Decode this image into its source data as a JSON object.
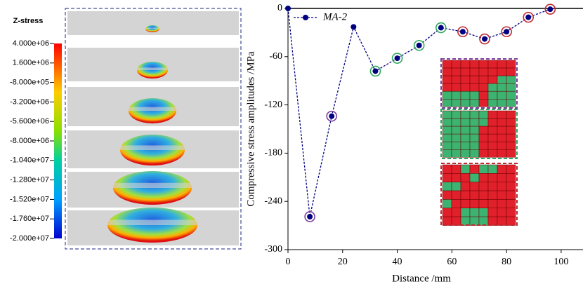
{
  "colorbar": {
    "title": "Z-stress",
    "labels": [
      "4.000e+06",
      "1.600e+06",
      "-8.000e+05",
      "-3.200e+06",
      "-5.600e+06",
      "-8.000e+06",
      "-1.040e+07",
      "-1.280e+07",
      "-1.520e+07",
      "-1.760e+07",
      "-2.000e+07"
    ]
  },
  "chart_data": {
    "type": "line",
    "x_label": "Distance /mm",
    "y_label": "Compressive stress amplitudes /MPa",
    "x": [
      0,
      8,
      16,
      24,
      32,
      40,
      48,
      56,
      64,
      72,
      80,
      88,
      96
    ],
    "series": [
      {
        "name": "MA-2",
        "color": "#000080",
        "values": [
          0,
          -259,
          -134,
          -23,
          -78,
          -62,
          -46,
          -24,
          -29,
          -38,
          -29,
          -11,
          -1
        ],
        "ring_colors": [
          null,
          "#7b3f9e",
          "#7b3f9e",
          null,
          "#2ea85a",
          "#2ea85a",
          "#2ea85a",
          "#2ea85a",
          "#c0282d",
          "#c0282d",
          "#c0282d",
          "#c0282d",
          "#c0282d"
        ]
      }
    ],
    "xlim": [
      0,
      108
    ],
    "ylim": [
      -300,
      0
    ],
    "xticks": [
      0,
      20,
      40,
      60,
      80,
      100
    ],
    "yticks": [
      0,
      -60,
      -120,
      -180,
      -240,
      -300
    ]
  }
}
